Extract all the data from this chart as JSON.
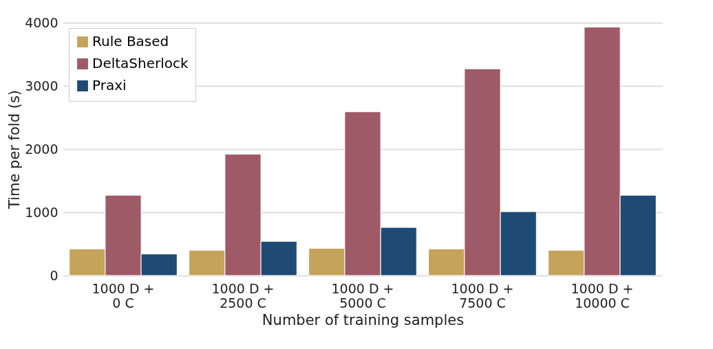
{
  "chart_data": {
    "type": "bar",
    "xlabel": "Number of training samples",
    "ylabel": "Time per fold (s)",
    "categories": [
      "1000 D +\n0 C",
      "1000 D +\n2500 C",
      "1000 D +\n5000 C",
      "1000 D +\n7500 C",
      "1000 D +\n10000 C"
    ],
    "series": [
      {
        "name": "Rule Based",
        "color": "#c4a35a",
        "values": [
          420,
          400,
          430,
          420,
          400
        ]
      },
      {
        "name": "DeltaSherlock",
        "color": "#9e5a66",
        "values": [
          1270,
          1920,
          2590,
          3270,
          3930
        ]
      },
      {
        "name": "Praxi",
        "color": "#1f4a73",
        "values": [
          340,
          540,
          760,
          1010,
          1270
        ]
      }
    ],
    "ylim": [
      0,
      4000
    ],
    "yticks": [
      0,
      1000,
      2000,
      3000,
      4000
    ],
    "grid": "y",
    "legend": "top left"
  }
}
